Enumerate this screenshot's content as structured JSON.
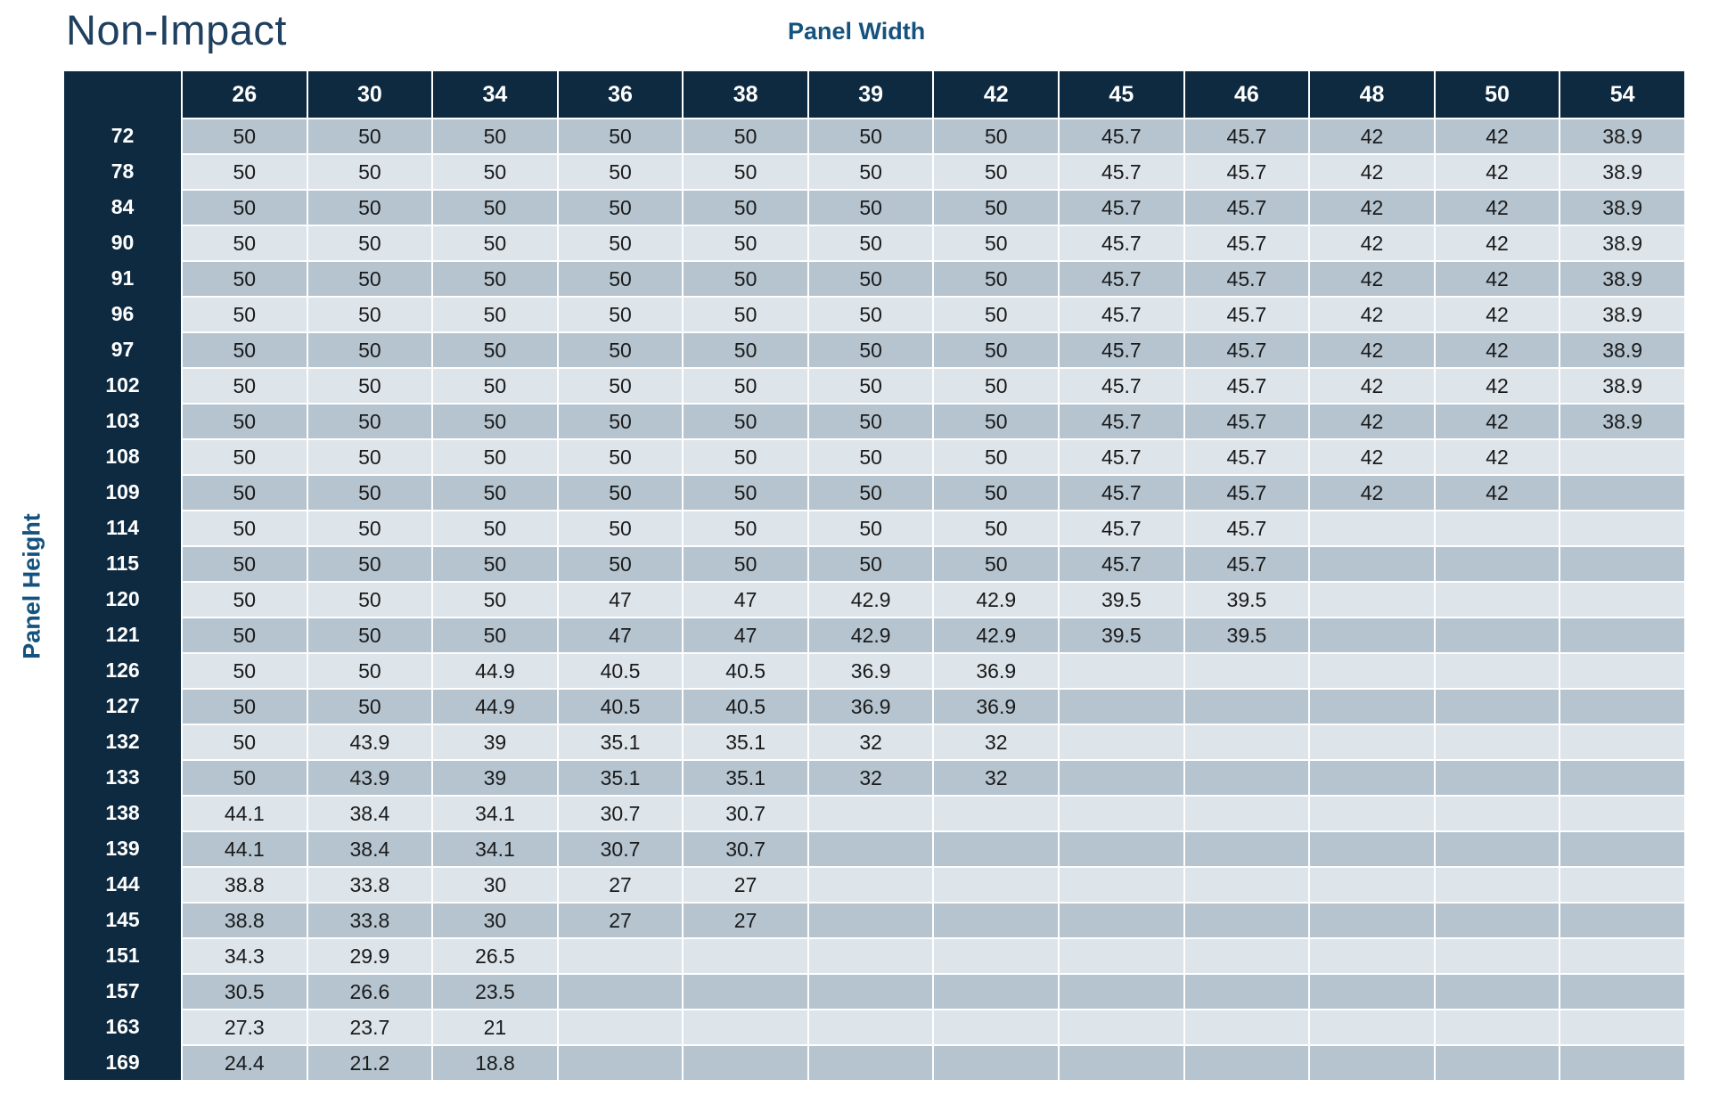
{
  "chart_data": {
    "type": "table",
    "title": "Non-Impact",
    "x_axis_label": "Panel Width",
    "y_axis_label": "Panel Height",
    "columns": [
      "26",
      "30",
      "34",
      "36",
      "38",
      "39",
      "42",
      "45",
      "46",
      "48",
      "50",
      "54"
    ],
    "rows": [
      "72",
      "78",
      "84",
      "90",
      "91",
      "96",
      "97",
      "102",
      "103",
      "108",
      "109",
      "114",
      "115",
      "120",
      "121",
      "126",
      "127",
      "132",
      "133",
      "138",
      "139",
      "144",
      "145",
      "151",
      "157",
      "163",
      "169"
    ],
    "values": [
      [
        "50",
        "50",
        "50",
        "50",
        "50",
        "50",
        "50",
        "45.7",
        "45.7",
        "42",
        "42",
        "38.9"
      ],
      [
        "50",
        "50",
        "50",
        "50",
        "50",
        "50",
        "50",
        "45.7",
        "45.7",
        "42",
        "42",
        "38.9"
      ],
      [
        "50",
        "50",
        "50",
        "50",
        "50",
        "50",
        "50",
        "45.7",
        "45.7",
        "42",
        "42",
        "38.9"
      ],
      [
        "50",
        "50",
        "50",
        "50",
        "50",
        "50",
        "50",
        "45.7",
        "45.7",
        "42",
        "42",
        "38.9"
      ],
      [
        "50",
        "50",
        "50",
        "50",
        "50",
        "50",
        "50",
        "45.7",
        "45.7",
        "42",
        "42",
        "38.9"
      ],
      [
        "50",
        "50",
        "50",
        "50",
        "50",
        "50",
        "50",
        "45.7",
        "45.7",
        "42",
        "42",
        "38.9"
      ],
      [
        "50",
        "50",
        "50",
        "50",
        "50",
        "50",
        "50",
        "45.7",
        "45.7",
        "42",
        "42",
        "38.9"
      ],
      [
        "50",
        "50",
        "50",
        "50",
        "50",
        "50",
        "50",
        "45.7",
        "45.7",
        "42",
        "42",
        "38.9"
      ],
      [
        "50",
        "50",
        "50",
        "50",
        "50",
        "50",
        "50",
        "45.7",
        "45.7",
        "42",
        "42",
        "38.9"
      ],
      [
        "50",
        "50",
        "50",
        "50",
        "50",
        "50",
        "50",
        "45.7",
        "45.7",
        "42",
        "42",
        ""
      ],
      [
        "50",
        "50",
        "50",
        "50",
        "50",
        "50",
        "50",
        "45.7",
        "45.7",
        "42",
        "42",
        ""
      ],
      [
        "50",
        "50",
        "50",
        "50",
        "50",
        "50",
        "50",
        "45.7",
        "45.7",
        "",
        "",
        ""
      ],
      [
        "50",
        "50",
        "50",
        "50",
        "50",
        "50",
        "50",
        "45.7",
        "45.7",
        "",
        "",
        ""
      ],
      [
        "50",
        "50",
        "50",
        "47",
        "47",
        "42.9",
        "42.9",
        "39.5",
        "39.5",
        "",
        "",
        ""
      ],
      [
        "50",
        "50",
        "50",
        "47",
        "47",
        "42.9",
        "42.9",
        "39.5",
        "39.5",
        "",
        "",
        ""
      ],
      [
        "50",
        "50",
        "44.9",
        "40.5",
        "40.5",
        "36.9",
        "36.9",
        "",
        "",
        "",
        "",
        ""
      ],
      [
        "50",
        "50",
        "44.9",
        "40.5",
        "40.5",
        "36.9",
        "36.9",
        "",
        "",
        "",
        "",
        ""
      ],
      [
        "50",
        "43.9",
        "39",
        "35.1",
        "35.1",
        "32",
        "32",
        "",
        "",
        "",
        "",
        ""
      ],
      [
        "50",
        "43.9",
        "39",
        "35.1",
        "35.1",
        "32",
        "32",
        "",
        "",
        "",
        "",
        ""
      ],
      [
        "44.1",
        "38.4",
        "34.1",
        "30.7",
        "30.7",
        "",
        "",
        "",
        "",
        "",
        "",
        ""
      ],
      [
        "44.1",
        "38.4",
        "34.1",
        "30.7",
        "30.7",
        "",
        "",
        "",
        "",
        "",
        "",
        ""
      ],
      [
        "38.8",
        "33.8",
        "30",
        "27",
        "27",
        "",
        "",
        "",
        "",
        "",
        "",
        ""
      ],
      [
        "38.8",
        "33.8",
        "30",
        "27",
        "27",
        "",
        "",
        "",
        "",
        "",
        "",
        ""
      ],
      [
        "34.3",
        "29.9",
        "26.5",
        "",
        "",
        "",
        "",
        "",
        "",
        "",
        "",
        ""
      ],
      [
        "30.5",
        "26.6",
        "23.5",
        "",
        "",
        "",
        "",
        "",
        "",
        "",
        "",
        ""
      ],
      [
        "27.3",
        "23.7",
        "21",
        "",
        "",
        "",
        "",
        "",
        "",
        "",
        "",
        ""
      ],
      [
        "24.4",
        "21.2",
        "18.8",
        "",
        "",
        "",
        "",
        "",
        "",
        "",
        "",
        ""
      ]
    ],
    "layout": {
      "header_position": "top-and-left",
      "row_banding": "alternating",
      "grid": "white-separators"
    }
  },
  "colors": {
    "header_bg": "#0e2a40",
    "header_text": "#ffffff",
    "band_dark": "#b5c4cf",
    "band_light": "#dde4ea",
    "cell_text": "#1a1a1a",
    "axis_label": "#15537e",
    "title": "#20405f",
    "grid_line": "#ffffff"
  }
}
